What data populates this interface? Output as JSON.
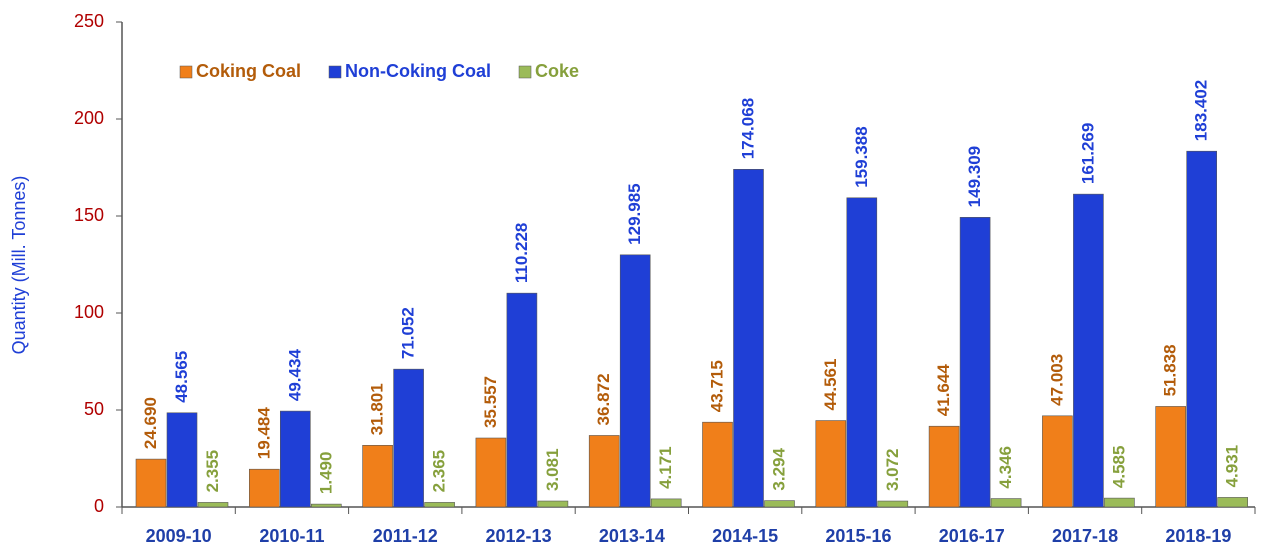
{
  "chart_data": {
    "type": "bar",
    "y_label": "Quantity (Mill. Tonnes)",
    "categories": [
      "2009-10",
      "2010-11",
      "2011-12",
      "2012-13",
      "2013-14",
      "2014-15",
      "2015-16",
      "2016-17",
      "2017-18",
      "2018-19"
    ],
    "series": [
      {
        "name": "Coking Coal",
        "color": "#f07f1a",
        "label_color": "#b35c0a",
        "values": [
          24.69,
          19.484,
          31.801,
          35.557,
          36.872,
          43.715,
          44.561,
          41.644,
          47.003,
          51.838
        ],
        "value_labels": [
          "24.690",
          "19.484",
          "31.801",
          "35.557",
          "36.872",
          "43.715",
          "44.561",
          "41.644",
          "47.003",
          "51.838"
        ]
      },
      {
        "name": "Non-Coking Coal",
        "color": "#1f3fd6",
        "label_color": "#1f3fd6",
        "values": [
          48.565,
          49.434,
          71.052,
          110.228,
          129.985,
          174.068,
          159.388,
          149.309,
          161.269,
          183.402
        ],
        "value_labels": [
          "48.565",
          "49.434",
          "71.052",
          "110.228",
          "129.985",
          "174.068",
          "159.388",
          "149.309",
          "161.269",
          "183.402"
        ]
      },
      {
        "name": "Coke",
        "color": "#9bbb59",
        "label_color": "#86a03c",
        "values": [
          2.355,
          1.49,
          2.365,
          3.081,
          4.171,
          3.294,
          3.072,
          4.346,
          4.585,
          4.931
        ],
        "value_labels": [
          "2.355",
          "1.490",
          "2.365",
          "3.081",
          "4.171",
          "3.294",
          "3.072",
          "4.346",
          "4.585",
          "4.931"
        ]
      }
    ],
    "ylim": [
      0,
      250
    ],
    "yticks": [
      0,
      50,
      100,
      150,
      200,
      250
    ],
    "legend": "top-left"
  }
}
